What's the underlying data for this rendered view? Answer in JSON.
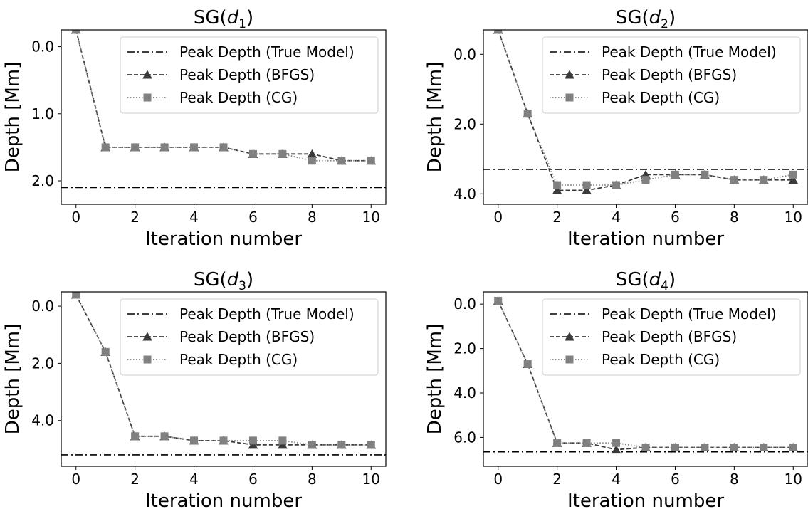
{
  "chart_data": [
    {
      "type": "line",
      "title_prefix": "SG(",
      "title_var": "d",
      "title_sub": "1",
      "title_suffix": ")",
      "xlabel": "Iteration number",
      "ylabel": "Depth [Mm]",
      "xlim": [
        -0.5,
        10.5
      ],
      "ylim": [
        -0.25,
        2.35
      ],
      "y_inverted": true,
      "xticks": [
        0,
        2,
        4,
        6,
        8,
        10
      ],
      "xtick_labels": [
        "0",
        "2",
        "4",
        "6",
        "8",
        "10"
      ],
      "yticks": [
        0,
        1,
        2
      ],
      "ytick_labels": [
        "0.0",
        "1.0",
        "2.0"
      ],
      "legend_position": "top-right",
      "hline": {
        "name": "Peak Depth (True Model)",
        "y": 2.1
      },
      "series": [
        {
          "name": "Peak Depth (BFGS)",
          "marker": "triangle",
          "x": [
            0,
            1,
            2,
            3,
            4,
            5,
            6,
            7,
            8,
            9,
            10
          ],
          "y": [
            -0.25,
            1.5,
            1.5,
            1.5,
            1.5,
            1.5,
            1.6,
            1.6,
            1.6,
            1.7,
            1.7
          ]
        },
        {
          "name": "Peak Depth (CG)",
          "marker": "square",
          "x": [
            0,
            1,
            2,
            3,
            4,
            5,
            6,
            7,
            8,
            9,
            10
          ],
          "y": [
            -0.25,
            1.5,
            1.5,
            1.5,
            1.5,
            1.5,
            1.6,
            1.6,
            1.7,
            1.7,
            1.7
          ]
        }
      ]
    },
    {
      "type": "line",
      "title_prefix": "SG(",
      "title_var": "d",
      "title_sub": "2",
      "title_suffix": ")",
      "xlabel": "Iteration number",
      "ylabel": "Depth [Mm]",
      "xlim": [
        -0.5,
        10.5
      ],
      "ylim": [
        -0.7,
        4.3
      ],
      "y_inverted": true,
      "xticks": [
        0,
        2,
        4,
        6,
        8,
        10
      ],
      "xtick_labels": [
        "0",
        "2",
        "4",
        "6",
        "8",
        "10"
      ],
      "yticks": [
        0,
        2,
        4
      ],
      "ytick_labels": [
        "0.0",
        "2.0",
        "4.0"
      ],
      "legend_position": "top-right",
      "hline": {
        "name": "Peak Depth (True Model)",
        "y": 3.3
      },
      "series": [
        {
          "name": "Peak Depth (BFGS)",
          "marker": "triangle",
          "x": [
            0,
            1,
            2,
            3,
            4,
            5,
            6,
            7,
            8,
            9,
            10
          ],
          "y": [
            -0.7,
            1.7,
            3.9,
            3.9,
            3.75,
            3.45,
            3.45,
            3.45,
            3.6,
            3.6,
            3.6
          ]
        },
        {
          "name": "Peak Depth (CG)",
          "marker": "square",
          "x": [
            0,
            1,
            2,
            3,
            4,
            5,
            6,
            7,
            8,
            9,
            10
          ],
          "y": [
            -0.7,
            1.7,
            3.75,
            3.75,
            3.75,
            3.6,
            3.45,
            3.45,
            3.6,
            3.6,
            3.45
          ]
        }
      ]
    },
    {
      "type": "line",
      "title_prefix": "SG(",
      "title_var": "d",
      "title_sub": "3",
      "title_suffix": ")",
      "xlabel": "Iteration number",
      "ylabel": "Depth [Mm]",
      "xlim": [
        -0.5,
        10.5
      ],
      "ylim": [
        -0.5,
        5.6
      ],
      "y_inverted": true,
      "xticks": [
        0,
        2,
        4,
        6,
        8,
        10
      ],
      "xtick_labels": [
        "0",
        "2",
        "4",
        "6",
        "8",
        "10"
      ],
      "yticks": [
        0,
        2,
        4
      ],
      "ytick_labels": [
        "0.0",
        "2.0",
        "4.0"
      ],
      "legend_position": "top-right",
      "hline": {
        "name": "Peak Depth (True Model)",
        "y": 5.2
      },
      "series": [
        {
          "name": "Peak Depth (BFGS)",
          "marker": "triangle",
          "x": [
            0,
            1,
            2,
            3,
            4,
            5,
            6,
            7,
            8,
            9,
            10
          ],
          "y": [
            -0.4,
            1.6,
            4.55,
            4.55,
            4.7,
            4.7,
            4.85,
            4.85,
            4.85,
            4.85,
            4.85
          ]
        },
        {
          "name": "Peak Depth (CG)",
          "marker": "square",
          "x": [
            0,
            1,
            2,
            3,
            4,
            5,
            6,
            7,
            8,
            9,
            10
          ],
          "y": [
            -0.4,
            1.6,
            4.55,
            4.55,
            4.7,
            4.7,
            4.7,
            4.7,
            4.85,
            4.85,
            4.85
          ]
        }
      ]
    },
    {
      "type": "line",
      "title_prefix": "SG(",
      "title_var": "d",
      "title_sub": "4",
      "title_suffix": ")",
      "xlabel": "Iteration number",
      "ylabel": "Depth [Mm]",
      "xlim": [
        -0.5,
        10.5
      ],
      "ylim": [
        -0.55,
        7.3
      ],
      "y_inverted": true,
      "xticks": [
        0,
        2,
        4,
        6,
        8,
        10
      ],
      "xtick_labels": [
        "0",
        "2",
        "4",
        "6",
        "8",
        "10"
      ],
      "yticks": [
        0,
        2,
        4,
        6
      ],
      "ytick_labels": [
        "0.0",
        "2.0",
        "4.0",
        "6.0"
      ],
      "legend_position": "top-right",
      "hline": {
        "name": "Peak Depth (True Model)",
        "y": 6.65
      },
      "series": [
        {
          "name": "Peak Depth (BFGS)",
          "marker": "triangle",
          "x": [
            0,
            1,
            2,
            3,
            4,
            5,
            6,
            7,
            8,
            9,
            10
          ],
          "y": [
            -0.15,
            2.7,
            6.25,
            6.25,
            6.55,
            6.45,
            6.45,
            6.45,
            6.45,
            6.45,
            6.45
          ]
        },
        {
          "name": "Peak Depth (CG)",
          "marker": "square",
          "x": [
            0,
            1,
            2,
            3,
            4,
            5,
            6,
            7,
            8,
            9,
            10
          ],
          "y": [
            -0.15,
            2.7,
            6.25,
            6.25,
            6.25,
            6.45,
            6.45,
            6.45,
            6.45,
            6.45,
            6.45
          ]
        }
      ]
    }
  ]
}
